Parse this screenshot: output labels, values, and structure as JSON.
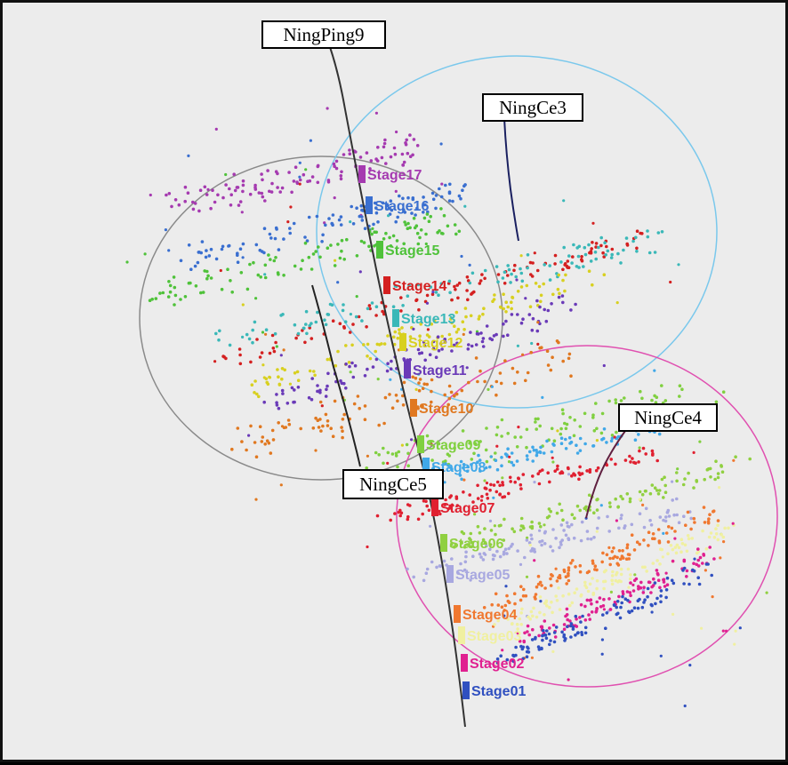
{
  "wells": [
    {
      "name": "NingPing9"
    },
    {
      "name": "NingCe3"
    },
    {
      "name": "NingCe4"
    },
    {
      "name": "NingCe5"
    }
  ],
  "stages": [
    {
      "label": "Stage17",
      "color": "#a53ab0"
    },
    {
      "label": "Stage16",
      "color": "#3a6fd0"
    },
    {
      "label": "Stage15",
      "color": "#4fc23a"
    },
    {
      "label": "Stage14",
      "color": "#d42020"
    },
    {
      "label": "Stage13",
      "color": "#3ab8b8"
    },
    {
      "label": "Stage12",
      "color": "#d8d020"
    },
    {
      "label": "Stage11",
      "color": "#6a3ab8"
    },
    {
      "label": "Stage10",
      "color": "#e07820"
    },
    {
      "label": "Stage09",
      "color": "#80d040"
    },
    {
      "label": "Stage08",
      "color": "#40a8e8"
    },
    {
      "label": "Stage07",
      "color": "#e02030"
    },
    {
      "label": "Stage06",
      "color": "#90d040"
    },
    {
      "label": "Stage05",
      "color": "#a8a8e0"
    },
    {
      "label": "Stage04",
      "color": "#f07830"
    },
    {
      "label": "Stage03",
      "color": "#f0f0a0"
    },
    {
      "label": "Stage02",
      "color": "#e02090"
    },
    {
      "label": "Stage01",
      "color": "#3050c0"
    }
  ],
  "colors": {
    "background": "#ececec",
    "well_track": "#333333",
    "circle_ningping9": "#8a8a8a",
    "circle_ningce3": "#7ac8ec",
    "circle_ningce4": "#e050b0"
  }
}
